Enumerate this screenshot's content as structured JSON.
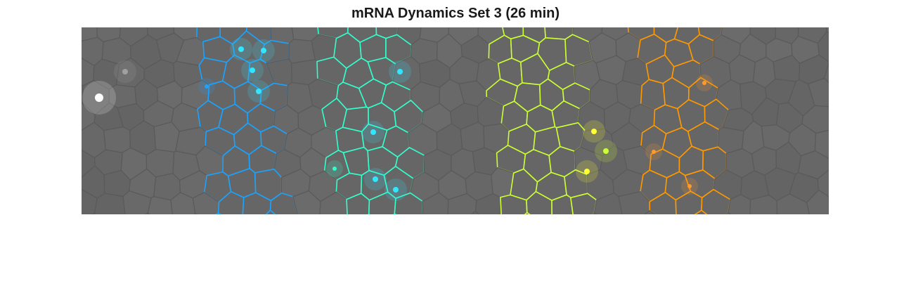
{
  "figure": {
    "title": "mRNA Dynamics Set 3 (26 min)"
  },
  "image": {
    "description_free": true,
    "background_color": "#666666",
    "cell_edge_color": "#5a5a5a",
    "stripe_colors": [
      "#1aa3ff",
      "#33ffcc",
      "#ccff33",
      "#ff9900"
    ],
    "highlight_colors": {
      "white": "#ffffff",
      "gray": "#a0a0a0",
      "cyan": "#33e6ff",
      "yellow": "#ffff33",
      "orange": "#ff9933"
    }
  }
}
